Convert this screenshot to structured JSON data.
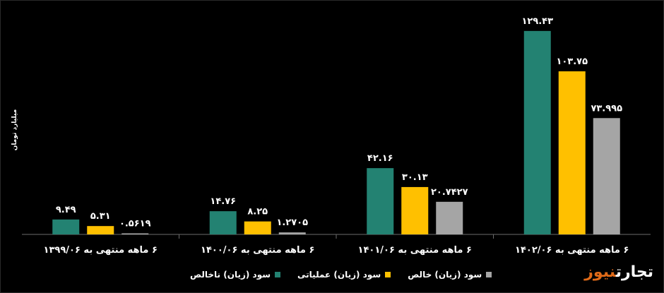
{
  "chart_data": {
    "type": "bar",
    "ylabel": "میلیارد تومان",
    "categories": [
      "۶ ماهه منتهی به ۱۳۹۹/۰۶",
      "۶ ماهه منتهی به ۱۴۰۰/۰۶",
      "۶ ماهه منتهی به ۱۴۰۱/۰۶",
      "۶ ماهه منتهی به ۱۴۰۲/۰۶"
    ],
    "series": [
      {
        "name": "سود (زیان) ناخالص",
        "color": "#238272",
        "values": [
          9.49,
          14.76,
          42.16,
          129.43
        ],
        "labels": [
          "۹.۴۹",
          "۱۴.۷۶",
          "۴۲.۱۶",
          "۱۲۹.۴۳"
        ]
      },
      {
        "name": "سود (زیان) عملیاتی",
        "color": "#ffc000",
        "values": [
          5.31,
          8.25,
          30.13,
          103.75
        ],
        "labels": [
          "۵.۳۱",
          "۸.۲۵",
          "۳۰.۱۳",
          "۱۰۳.۷۵"
        ]
      },
      {
        "name": "سود (زیان) خالص",
        "color": "#a5a5a5",
        "values": [
          0.5619,
          1.2705,
          20.7427,
          73.995
        ],
        "labels": [
          "۰.۵۶۱۹",
          "۱.۲۷۰۵",
          "۲۰.۷۴۲۷",
          "۷۳.۹۹۵"
        ]
      }
    ],
    "ylim": [
      0,
      137
    ],
    "grid": false,
    "legend_position": "bottom"
  },
  "watermark": {
    "part1": "تجارت",
    "part2": "نیوز"
  }
}
